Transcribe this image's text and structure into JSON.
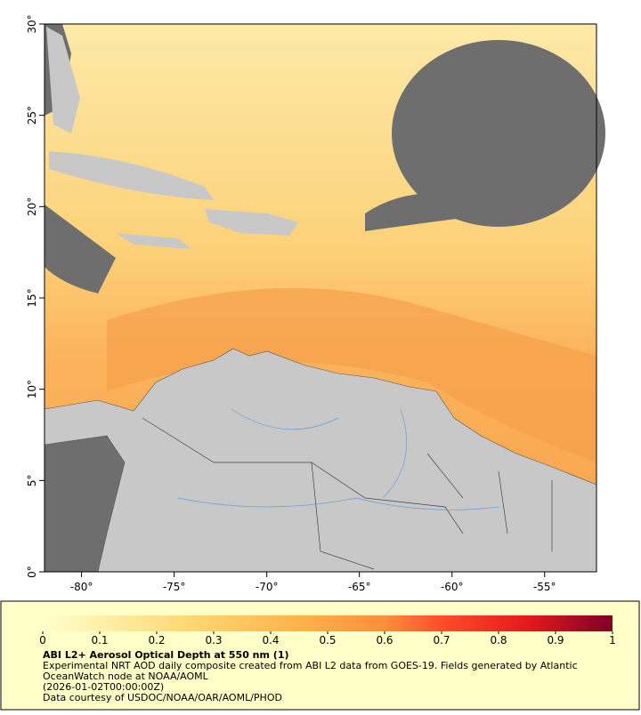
{
  "map": {
    "xlim": [
      -82,
      -52.2
    ],
    "ylim": [
      0,
      30
    ],
    "xticks": [
      {
        "value": -80,
        "label": "-80°"
      },
      {
        "value": -75,
        "label": "-75°"
      },
      {
        "value": -70,
        "label": "-70°"
      },
      {
        "value": -65,
        "label": "-65°"
      },
      {
        "value": -60,
        "label": "-60°"
      },
      {
        "value": -55,
        "label": "-55°"
      }
    ],
    "yticks": [
      {
        "value": 0,
        "label": "0°"
      },
      {
        "value": 5,
        "label": "5°"
      },
      {
        "value": 10,
        "label": "10°"
      },
      {
        "value": 15,
        "label": "15°"
      },
      {
        "value": 20,
        "label": "20°"
      },
      {
        "value": 25,
        "label": "25°"
      },
      {
        "value": 30,
        "label": "30°"
      }
    ]
  },
  "colorbar": {
    "range": [
      0,
      1
    ],
    "ticks": [
      0,
      0.1,
      0.2,
      0.3,
      0.4,
      0.5,
      0.6,
      0.7,
      0.8,
      0.9,
      1
    ]
  },
  "caption": {
    "title": "ABI L2+ Aerosol Optical Depth at 550 nm (1)",
    "description": "Experimental NRT AOD daily composite created from ABI L2 data from GOES-19. Fields generated by Atlantic OceanWatch node at NOAA/AOML",
    "timestamp": "(2026-01-02T00:00:00Z)",
    "credit": "Data courtesy of USDOC/NOAA/OAR/AOML/PHOD"
  }
}
